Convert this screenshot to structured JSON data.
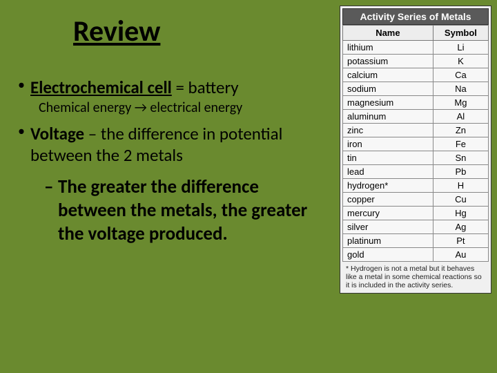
{
  "slide": {
    "title": "Review",
    "bullet1_term": "Electrochemical cell",
    "bullet1_rest": " = battery",
    "bullet1_sub": "Chemical energy → electrical energy",
    "bullet2_term": "Voltage",
    "bullet2_rest": " – the difference in potential between the 2 metals",
    "subbullet": "The greater the difference between the metals, the greater the voltage produced."
  },
  "table": {
    "title": "Activity Series of Metals",
    "col1": "Name",
    "col2": "Symbol",
    "rows": [
      {
        "name": "lithium",
        "sym": "Li"
      },
      {
        "name": "potassium",
        "sym": "K"
      },
      {
        "name": "calcium",
        "sym": "Ca"
      },
      {
        "name": "sodium",
        "sym": "Na"
      },
      {
        "name": "magnesium",
        "sym": "Mg"
      },
      {
        "name": "aluminum",
        "sym": "Al"
      },
      {
        "name": "zinc",
        "sym": "Zn"
      },
      {
        "name": "iron",
        "sym": "Fe"
      },
      {
        "name": "tin",
        "sym": "Sn"
      },
      {
        "name": "lead",
        "sym": "Pb"
      },
      {
        "name": "hydrogen*",
        "sym": "H"
      },
      {
        "name": "copper",
        "sym": "Cu"
      },
      {
        "name": "mercury",
        "sym": "Hg"
      },
      {
        "name": "silver",
        "sym": "Ag"
      },
      {
        "name": "platinum",
        "sym": "Pt"
      },
      {
        "name": "gold",
        "sym": "Au"
      }
    ],
    "footnote": "* Hydrogen is not a metal but it behaves like a metal in some chemical reactions so it is included in the activity series."
  },
  "colors": {
    "background": "#6a8a2f",
    "table_header_bg": "#5a5a5a",
    "table_border": "#333333"
  }
}
